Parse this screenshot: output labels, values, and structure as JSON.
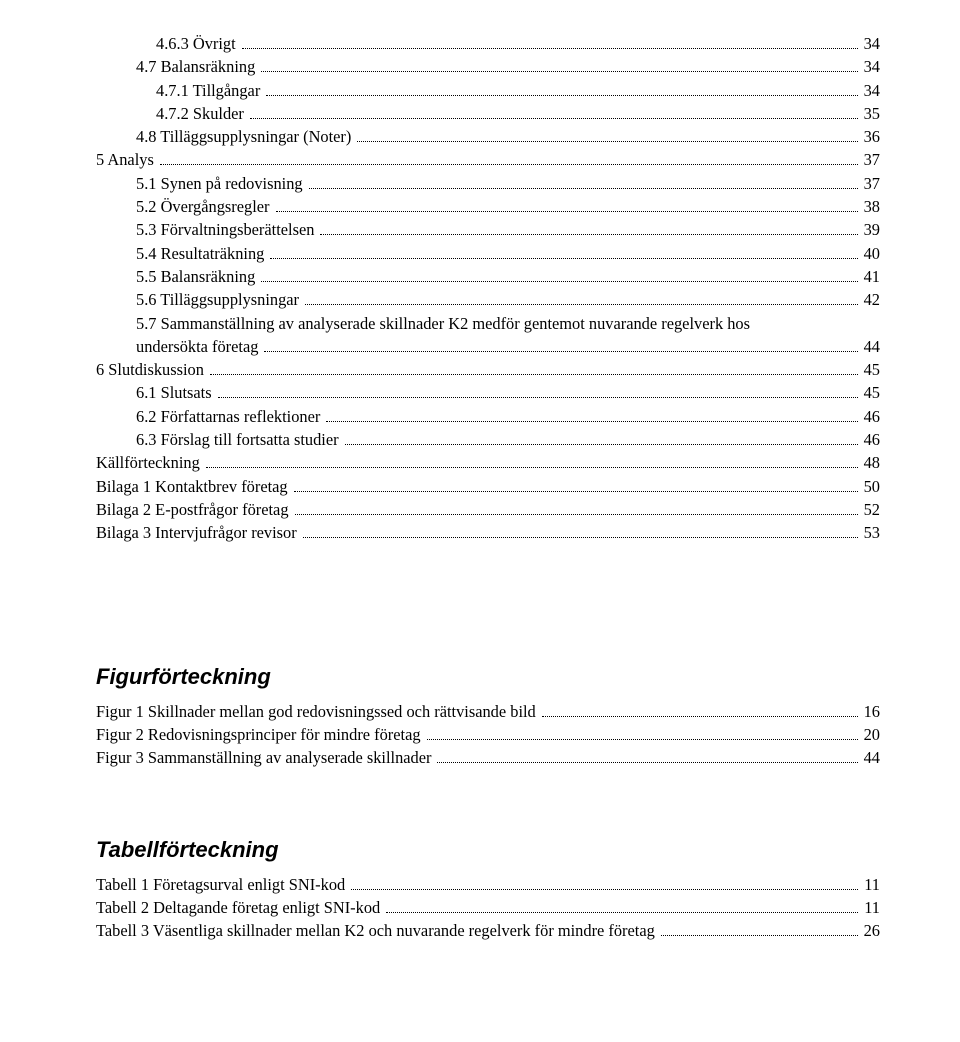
{
  "toc_main": [
    {
      "indent": 3,
      "label": "4.6.3 Övrigt",
      "page": "34"
    },
    {
      "indent": 2,
      "label": "4.7 Balansräkning",
      "page": "34"
    },
    {
      "indent": 3,
      "label": "4.7.1 Tillgångar",
      "page": "34"
    },
    {
      "indent": 3,
      "label": "4.7.2 Skulder",
      "page": "35"
    },
    {
      "indent": 2,
      "label": "4.8 Tilläggsupplysningar (Noter)",
      "page": "36"
    },
    {
      "indent": 0,
      "label": "5 Analys",
      "page": "37"
    },
    {
      "indent": 2,
      "label": "5.1 Synen på redovisning",
      "page": "37"
    },
    {
      "indent": 2,
      "label": "5.2 Övergångsregler",
      "page": "38"
    },
    {
      "indent": 2,
      "label": "5.3 Förvaltningsberättelsen",
      "page": "39"
    },
    {
      "indent": 2,
      "label": "5.4 Resultaträkning",
      "page": "40"
    },
    {
      "indent": 2,
      "label": "5.5 Balansräkning",
      "page": "41"
    },
    {
      "indent": 2,
      "label": "5.6 Tilläggsupplysningar",
      "page": "42"
    },
    {
      "indent": 2,
      "label": "5.7 Sammanställning av analyserade skillnader K2 medför gentemot nuvarande regelverk hos undersökta företag",
      "page": "44"
    },
    {
      "indent": 0,
      "label": "6 Slutdiskussion",
      "page": "45"
    },
    {
      "indent": 2,
      "label": "6.1 Slutsats",
      "page": "45"
    },
    {
      "indent": 2,
      "label": "6.2 Författarnas reflektioner",
      "page": "46"
    },
    {
      "indent": 2,
      "label": "6.3 Förslag till fortsatta studier",
      "page": "46"
    },
    {
      "indent": 0,
      "label": "Källförteckning",
      "page": "48"
    },
    {
      "indent": 0,
      "label": "Bilaga 1 Kontaktbrev företag",
      "page": "50"
    },
    {
      "indent": 0,
      "label": "Bilaga 2 E-postfrågor företag",
      "page": "52"
    },
    {
      "indent": 0,
      "label": "Bilaga 3 Intervjufrågor revisor",
      "page": "53"
    }
  ],
  "figures": {
    "heading": "Figurförteckning",
    "items": [
      {
        "label": "Figur 1 Skillnader mellan god redovisningssed och rättvisande bild",
        "page": "16"
      },
      {
        "label": "Figur 2 Redovisningsprinciper för mindre företag",
        "page": "20"
      },
      {
        "label": "Figur 3 Sammanställning av analyserade skillnader",
        "page": "44"
      }
    ]
  },
  "tables": {
    "heading": "Tabellförteckning",
    "items": [
      {
        "label": "Tabell 1 Företagsurval enligt SNI-kod",
        "page": "11"
      },
      {
        "label": "Tabell 2 Deltagande företag enligt SNI-kod",
        "page": "11"
      },
      {
        "label": "Tabell 3 Väsentliga skillnader mellan K2 och nuvarande regelverk för mindre företag",
        "page": "26"
      }
    ]
  }
}
